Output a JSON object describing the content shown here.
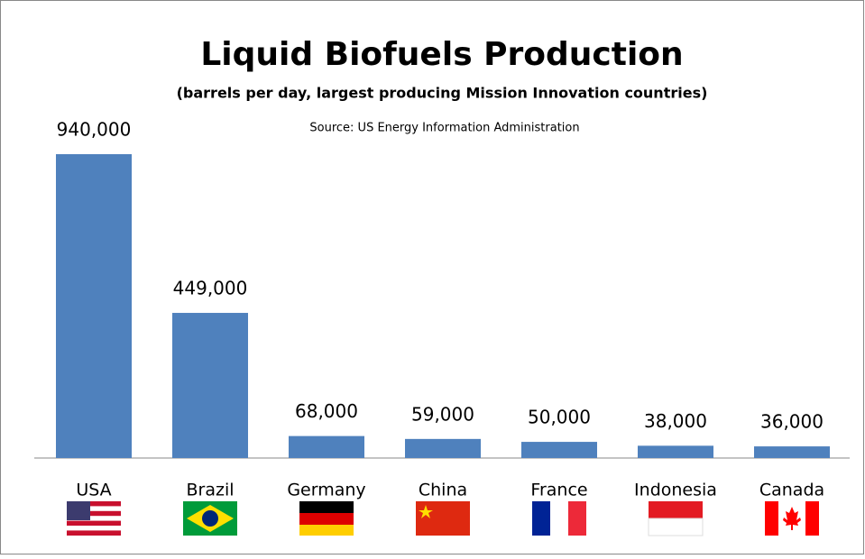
{
  "chart_data": {
    "type": "bar",
    "title": "Liquid Biofuels Production",
    "subtitle": "(barrels per day, largest producing Mission Innovation countries)",
    "source": "Source: US Energy Information Administration",
    "categories": [
      "USA",
      "Brazil",
      "Germany",
      "China",
      "France",
      "Indonesia",
      "Canada"
    ],
    "values": [
      940000,
      449000,
      68000,
      59000,
      50000,
      38000,
      36000
    ],
    "value_labels": [
      "940,000",
      "449,000",
      "68,000",
      "59,000",
      "50,000",
      "38,000",
      "36,000"
    ],
    "color": "#4f81bd"
  }
}
